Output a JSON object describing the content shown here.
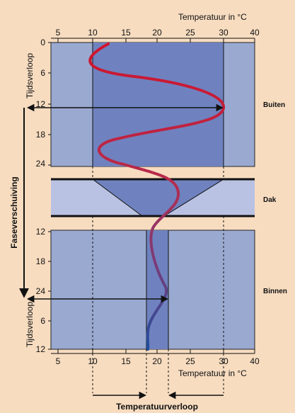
{
  "top_axis": {
    "label": "Temperatuur in °C",
    "ticks": [
      "5",
      "10",
      "15",
      "20",
      "25",
      "30",
      "40"
    ],
    "time_label": "Tijdsverloop",
    "time_ticks": [
      "0",
      "6",
      "12",
      "18",
      "24"
    ]
  },
  "bottom_axis": {
    "label": "Temperatuur in °C",
    "ticks": [
      "5",
      "10",
      "15",
      "20",
      "25",
      "30",
      "40"
    ],
    "time_label": "Tijdsverloop",
    "time_ticks": [
      "12",
      "18",
      "24",
      "6",
      "12"
    ]
  },
  "zones": {
    "outside": "Buiten",
    "roof": "Dak",
    "inside": "Binnen"
  },
  "phase_shift_label": "Faseverschuiving",
  "amplitude_label": "Temperatuurverloop",
  "colors": {
    "background": "#f7dcc0",
    "panel_light": "#9aa9d0",
    "panel_dark": "#6f82bf",
    "roof_light": "#b9c2e2",
    "curve_outside": "#d0142c",
    "curve_inside": "#1f4fa0"
  }
}
